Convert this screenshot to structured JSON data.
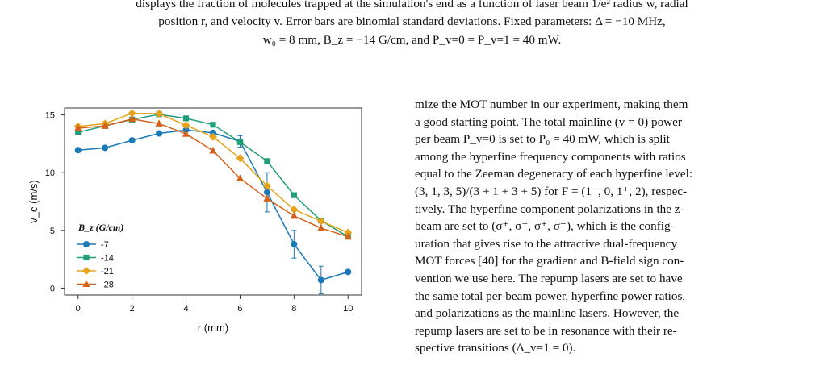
{
  "caption": {
    "line1": "displays the fraction of molecules trapped at the simulation's end as a function of laser beam 1/e² radius w, radial",
    "line2": "position r, and velocity v. Error bars are binomial standard deviations. Fixed parameters: Δ = −10 MHz,",
    "line3": "w₀ = 8 mm, B_z = −14 G/cm, and P_v=0 = P_v=1 = 40 mW."
  },
  "body_text": [
    "mize the MOT number in our experiment, making them",
    "a good starting point. The total mainline (v = 0) power",
    "per beam P_v=0 is set to P₀ = 40 mW, which is split",
    "among the hyperfine frequency components with ratios",
    "equal to the Zeeman degeneracy of each hyperfine level:",
    "(3, 1, 3, 5)/(3 + 1 + 3 + 5) for F = (1⁻, 0, 1⁺, 2), respec-",
    "tively. The hyperfine component polarizations in the z-",
    "beam are set to (σ⁺, σ⁺, σ⁺, σ⁻), which is the config-",
    "uration that gives rise to the attractive dual-frequency",
    "MOT forces [40] for the gradient and B-field sign con-",
    "vention we use here. The repump lasers are set to have",
    "the same total per-beam power, hyperfine power ratios,",
    "and polarizations as the mainline lasers. However, the",
    "repump lasers are set to be in resonance with their re-",
    "spective transitions (Δ_v=1 = 0)."
  ],
  "chart_data": {
    "type": "line",
    "xlabel": "r (mm)",
    "ylabel": "v_c (m/s)",
    "xlim": [
      -0.5,
      10.5
    ],
    "ylim": [
      -0.6,
      15.6
    ],
    "xticks": [
      0,
      2,
      4,
      6,
      8,
      10
    ],
    "yticks": [
      0,
      5,
      10,
      15
    ],
    "grid": false,
    "legend": {
      "title": "B_z (G/cm)",
      "placement": "lower-left"
    },
    "x": [
      0,
      1,
      2,
      3,
      4,
      5,
      6,
      7,
      8,
      9,
      10
    ],
    "series": [
      {
        "name": "-7",
        "color": "#1a7ab8",
        "marker": "circle",
        "values": [
          11.95,
          12.15,
          12.8,
          13.4,
          13.7,
          13.45,
          12.7,
          8.3,
          3.8,
          0.7,
          1.4
        ],
        "errors": [
          0,
          0,
          0,
          0,
          0,
          0,
          0.5,
          1.7,
          1.2,
          1.2,
          0
        ]
      },
      {
        "name": "-14",
        "color": "#1f9e78",
        "marker": "square",
        "values": [
          13.5,
          14.05,
          14.6,
          15.05,
          14.7,
          14.15,
          12.65,
          11.0,
          8.05,
          5.85,
          4.45
        ],
        "errors": [
          0,
          0,
          0,
          0,
          0,
          0,
          0,
          0,
          0,
          0,
          0
        ]
      },
      {
        "name": "-21",
        "color": "#e5a31c",
        "marker": "diamond",
        "values": [
          14.0,
          14.25,
          15.15,
          15.1,
          14.1,
          13.1,
          11.25,
          8.85,
          6.8,
          5.8,
          4.8
        ],
        "errors": [
          0,
          0,
          0,
          0,
          0,
          0,
          0,
          0,
          0,
          0,
          0
        ]
      },
      {
        "name": "-28",
        "color": "#d5621b",
        "marker": "triangle",
        "values": [
          13.85,
          14.05,
          14.65,
          14.25,
          13.35,
          11.9,
          9.5,
          7.75,
          6.25,
          5.2,
          4.45
        ],
        "errors": [
          0,
          0,
          0,
          0,
          0,
          0,
          0,
          0,
          0,
          0,
          0
        ]
      }
    ]
  }
}
